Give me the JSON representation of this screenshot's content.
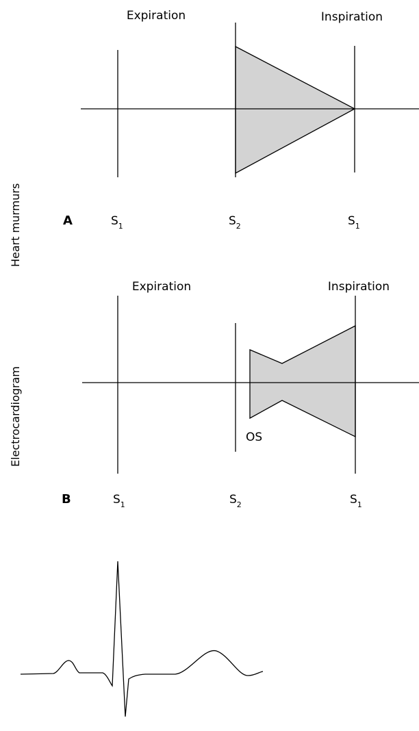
{
  "side_labels": {
    "heart_murmurs": "Heart murmurs",
    "electrocardiogram": "Electrocardiogram"
  },
  "panel_a": {
    "letter": "A",
    "expiration_label": "Expiration",
    "inspiration_label": "Inspiration",
    "sounds": [
      {
        "main": "S",
        "sub": "1"
      },
      {
        "main": "S",
        "sub": "2"
      },
      {
        "main": "S",
        "sub": "1"
      }
    ],
    "murmur_shape": "decrescendo"
  },
  "panel_b": {
    "letter": "B",
    "expiration_label": "Expiration",
    "inspiration_label": "Inspiration",
    "sounds": [
      {
        "main": "S",
        "sub": "1"
      },
      {
        "main": "S",
        "sub": "2"
      },
      {
        "main": "S",
        "sub": "1"
      }
    ],
    "os_label": "OS",
    "murmur_shape": "diastolic-rumble-with-presystolic-accentuation"
  },
  "colors": {
    "murmur_fill": "#d3d3d3",
    "line": "#000000"
  }
}
